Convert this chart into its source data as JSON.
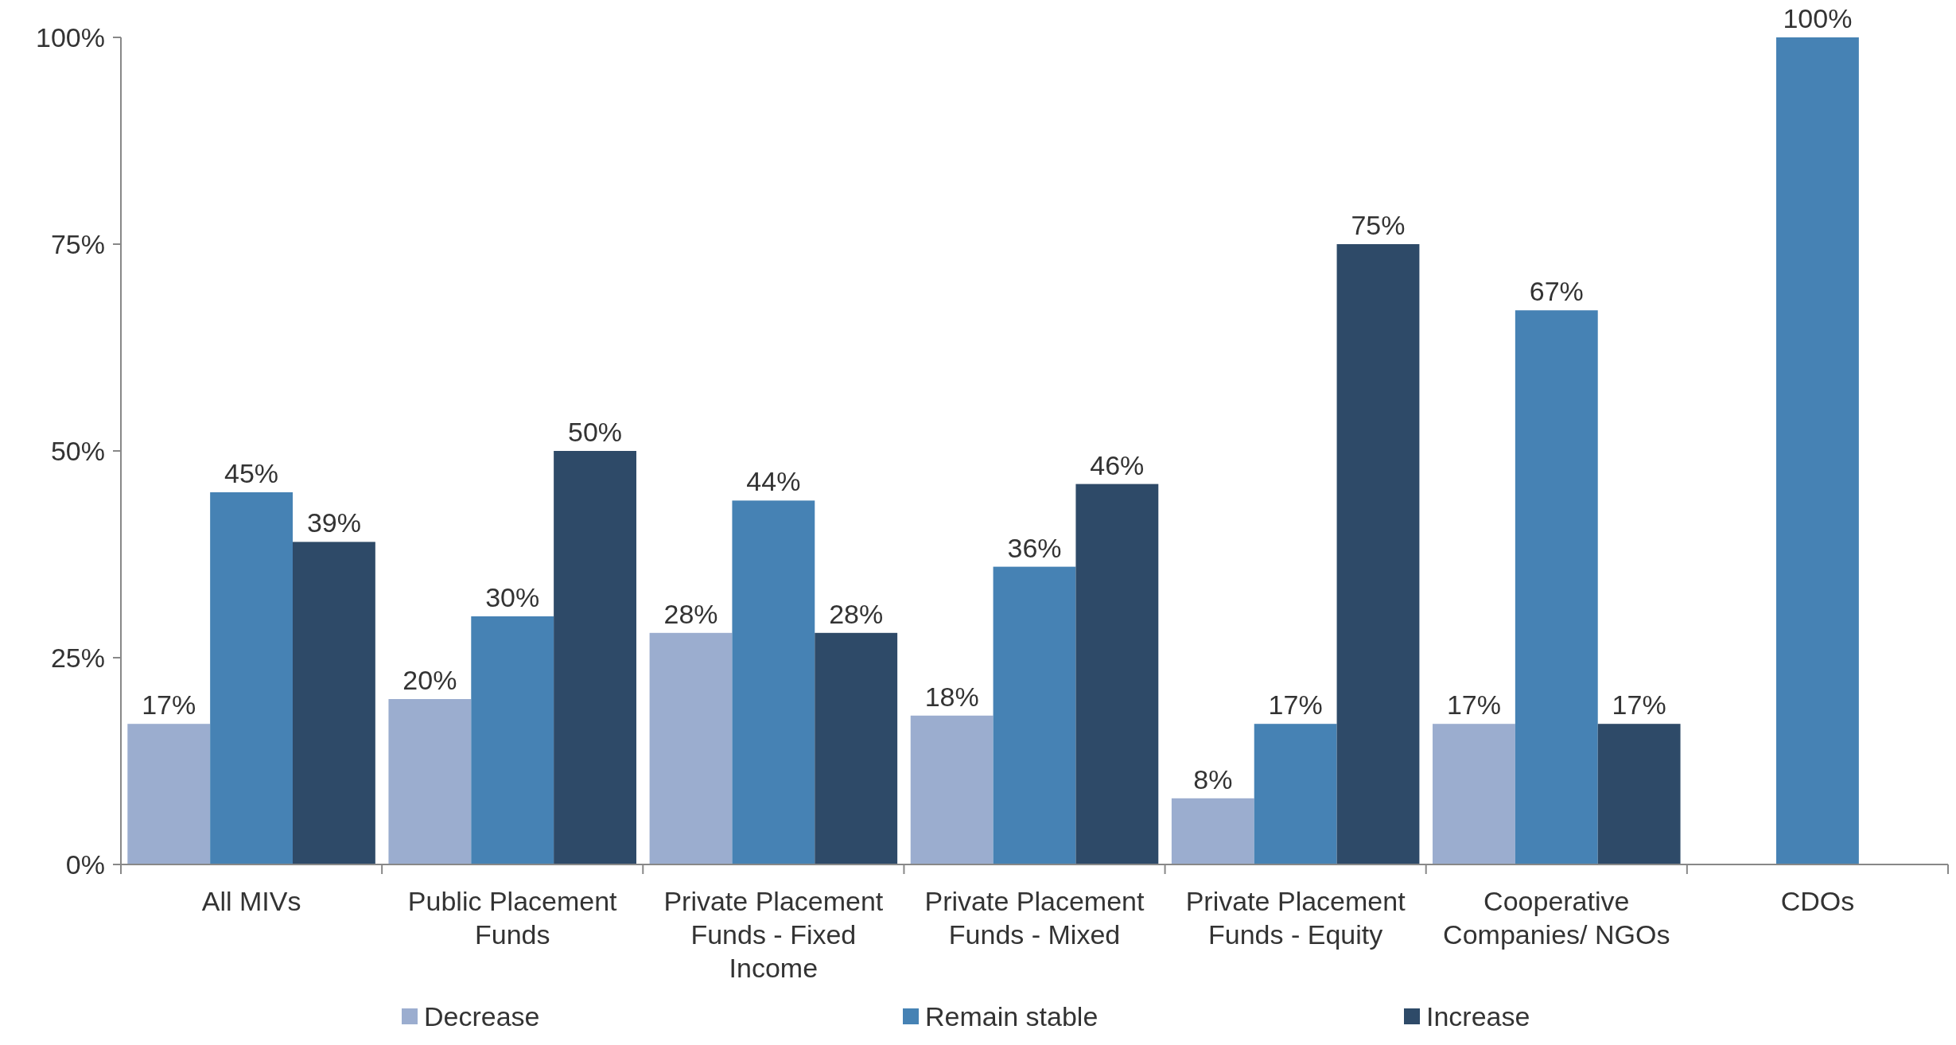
{
  "chart_data": {
    "type": "bar",
    "categories": [
      "All MIVs",
      "Public Placement Funds",
      "Private Placement Funds - Fixed Income",
      "Private Placement Funds - Mixed",
      "Private Placement Funds - Equity",
      "Cooperative Companies/ NGOs",
      "CDOs"
    ],
    "series": [
      {
        "name": "Decrease",
        "color": "#9badcf",
        "values": [
          17,
          20,
          28,
          18,
          8,
          17,
          null
        ],
        "value_labels": [
          "17%",
          "20%",
          "28%",
          "18%",
          "8%",
          "17%",
          null
        ]
      },
      {
        "name": "Remain stable",
        "color": "#4682b4",
        "values": [
          45,
          30,
          44,
          36,
          17,
          67,
          100
        ],
        "value_labels": [
          "45%",
          "30%",
          "44%",
          "36%",
          "17%",
          "67%",
          "100%"
        ]
      },
      {
        "name": "Increase",
        "color": "#2e4a68",
        "values": [
          39,
          50,
          28,
          46,
          75,
          17,
          null
        ],
        "value_labels": [
          "39%",
          "50%",
          "28%",
          "46%",
          "75%",
          "17%",
          null
        ]
      }
    ],
    "ylim": [
      0,
      100
    ],
    "yticks": [
      {
        "value": 0,
        "label": "0%"
      },
      {
        "value": 25,
        "label": "25%"
      },
      {
        "value": 50,
        "label": "50%"
      },
      {
        "value": 75,
        "label": "75%"
      },
      {
        "value": 100,
        "label": "100%"
      }
    ],
    "legend": "bottom",
    "grid": false
  }
}
